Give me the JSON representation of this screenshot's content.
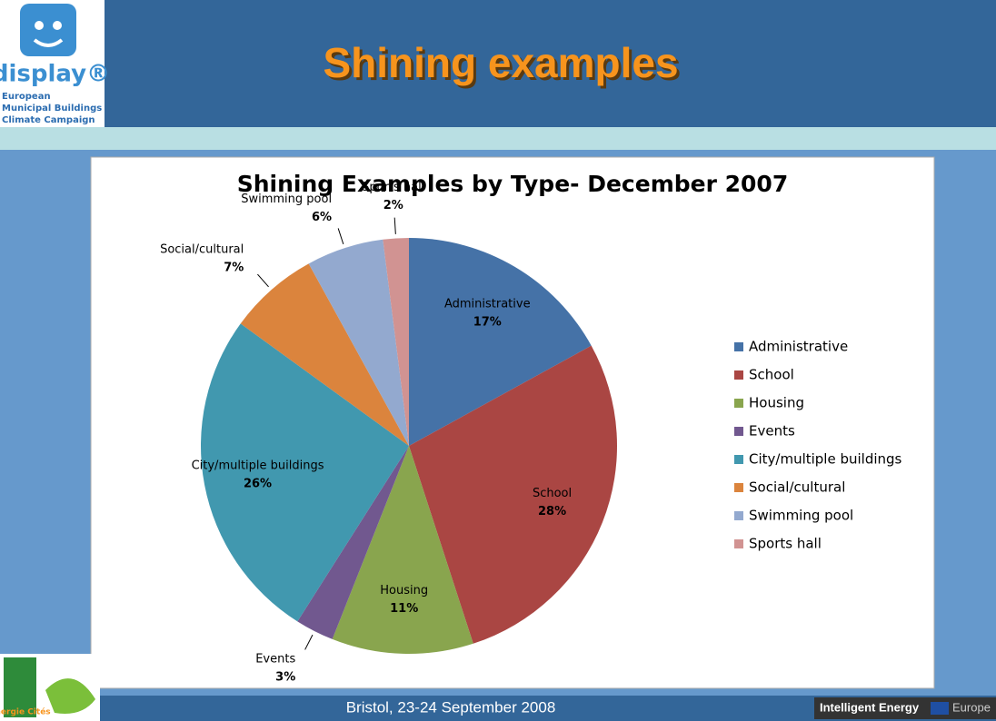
{
  "slide": {
    "title": "Shining examples",
    "logo_name": "display®",
    "logo_caption": [
      "European",
      "Municipal Buildings",
      "Climate Campaign"
    ],
    "footer": "Bristol, 23-24 September 2008",
    "footer_brand": "Intelligent Energy",
    "footer_brand_2": "Europe",
    "partner_logo": "Energie Cités"
  },
  "chart_data": {
    "type": "pie",
    "title": "Shining Examples by Type- December 2007",
    "categories": [
      "Administrative",
      "School",
      "Housing",
      "Events",
      "City/multiple  buildings",
      "Social/cultural",
      "Swimming pool",
      "Sports hall"
    ],
    "values": [
      17,
      28,
      11,
      3,
      26,
      7,
      6,
      2
    ],
    "value_labels": [
      "17%",
      "28%",
      "11%",
      "3%",
      "26%",
      "7%",
      "6%",
      "2%"
    ],
    "colors": [
      "#4572a7",
      "#aa4643",
      "#89a54e",
      "#71588f",
      "#4198af",
      "#db843d",
      "#93a9cf",
      "#d19392"
    ],
    "legend": "right"
  }
}
